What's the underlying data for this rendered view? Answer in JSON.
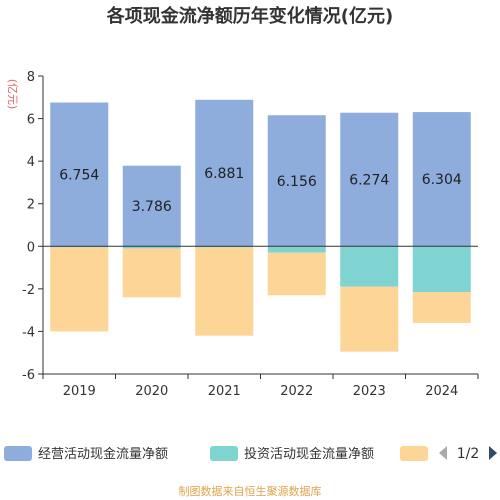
{
  "title": "各项现金流净额历年变化情况(亿元)",
  "chart_data": {
    "type": "bar",
    "stacked": true,
    "title": "各项现金流净额历年变化情况(亿元)",
    "ylabel": "(亿元)",
    "categories": [
      "2019",
      "2020",
      "2021",
      "2022",
      "2023",
      "2024"
    ],
    "ylim": [
      -6,
      8
    ],
    "yticks": [
      8,
      6,
      4,
      2,
      0,
      -2,
      -4,
      -6
    ],
    "grid": false,
    "legend_position": "bottom",
    "series": [
      {
        "name": "经营活动现金流量净额",
        "color": "#8eacdc",
        "values": [
          6.754,
          3.786,
          6.881,
          6.156,
          6.274,
          6.304
        ],
        "labels": [
          "6.754",
          "3.786",
          "6.881",
          "6.156",
          "6.274",
          "6.304"
        ]
      },
      {
        "name": "投资活动现金流量净额",
        "color": "#7fd3d1",
        "values": [
          -0.05,
          -0.1,
          -0.05,
          -0.3,
          -1.9,
          -2.15
        ]
      },
      {
        "color": "#fdd597",
        "values": [
          -3.95,
          -2.3,
          -4.15,
          -2.0,
          -3.05,
          -1.45
        ]
      }
    ]
  },
  "legend": {
    "pager": "1/2"
  },
  "source": "制图数据来自恒生聚源数据库"
}
